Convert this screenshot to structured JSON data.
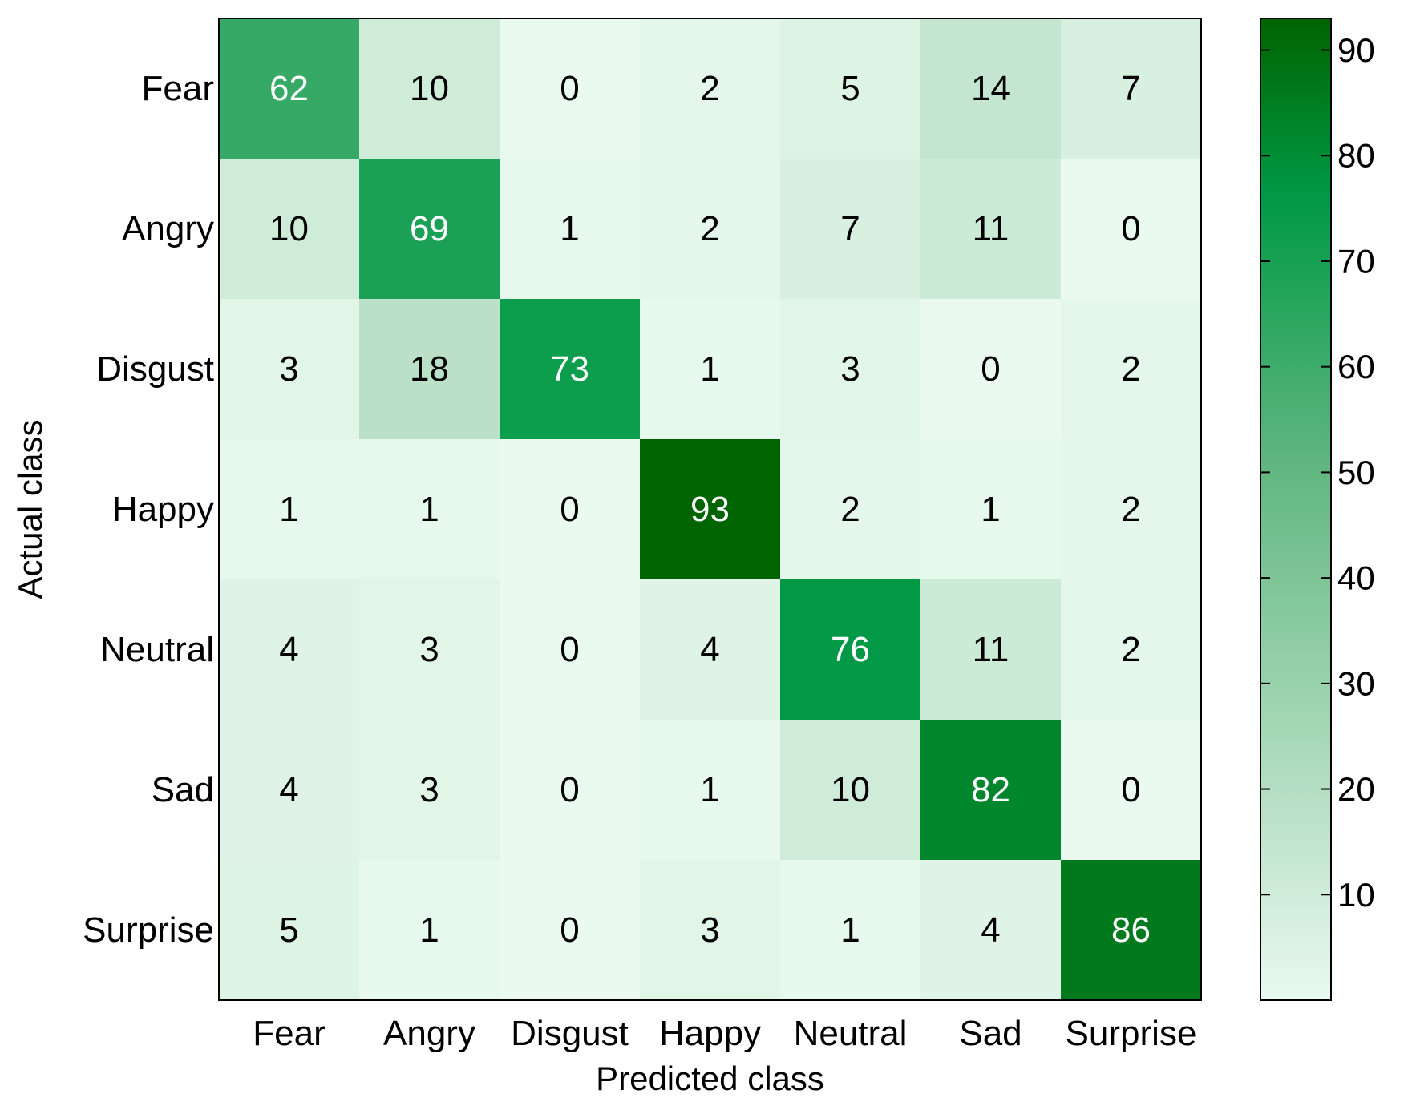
{
  "chart_data": {
    "type": "heatmap",
    "title": "",
    "xlabel": "Predicted class",
    "ylabel": "Actual class",
    "x_categories": [
      "Fear",
      "Angry",
      "Disgust",
      "Happy",
      "Neutral",
      "Sad",
      "Surprise"
    ],
    "y_categories": [
      "Fear",
      "Angry",
      "Disgust",
      "Happy",
      "Neutral",
      "Sad",
      "Surprise"
    ],
    "values": [
      [
        62,
        10,
        0,
        2,
        5,
        14,
        7
      ],
      [
        10,
        69,
        1,
        2,
        7,
        11,
        0
      ],
      [
        3,
        18,
        73,
        1,
        3,
        0,
        2
      ],
      [
        1,
        1,
        0,
        93,
        2,
        1,
        2
      ],
      [
        4,
        3,
        0,
        4,
        76,
        11,
        2
      ],
      [
        4,
        3,
        0,
        1,
        10,
        82,
        0
      ],
      [
        5,
        1,
        0,
        3,
        1,
        4,
        86
      ]
    ],
    "colorbar": {
      "range": [
        0,
        93
      ],
      "ticks": [
        10,
        20,
        30,
        40,
        50,
        60,
        70,
        80,
        90
      ],
      "colors": {
        "low": "#eafaef",
        "mid_light": "#b8e0c6",
        "mid": "#5fb67f",
        "high_mid": "#009945",
        "high": "#006400"
      }
    },
    "colors": {
      "text_dark": "#000000",
      "text_light": "#ffffff",
      "axis": "#000000"
    }
  }
}
